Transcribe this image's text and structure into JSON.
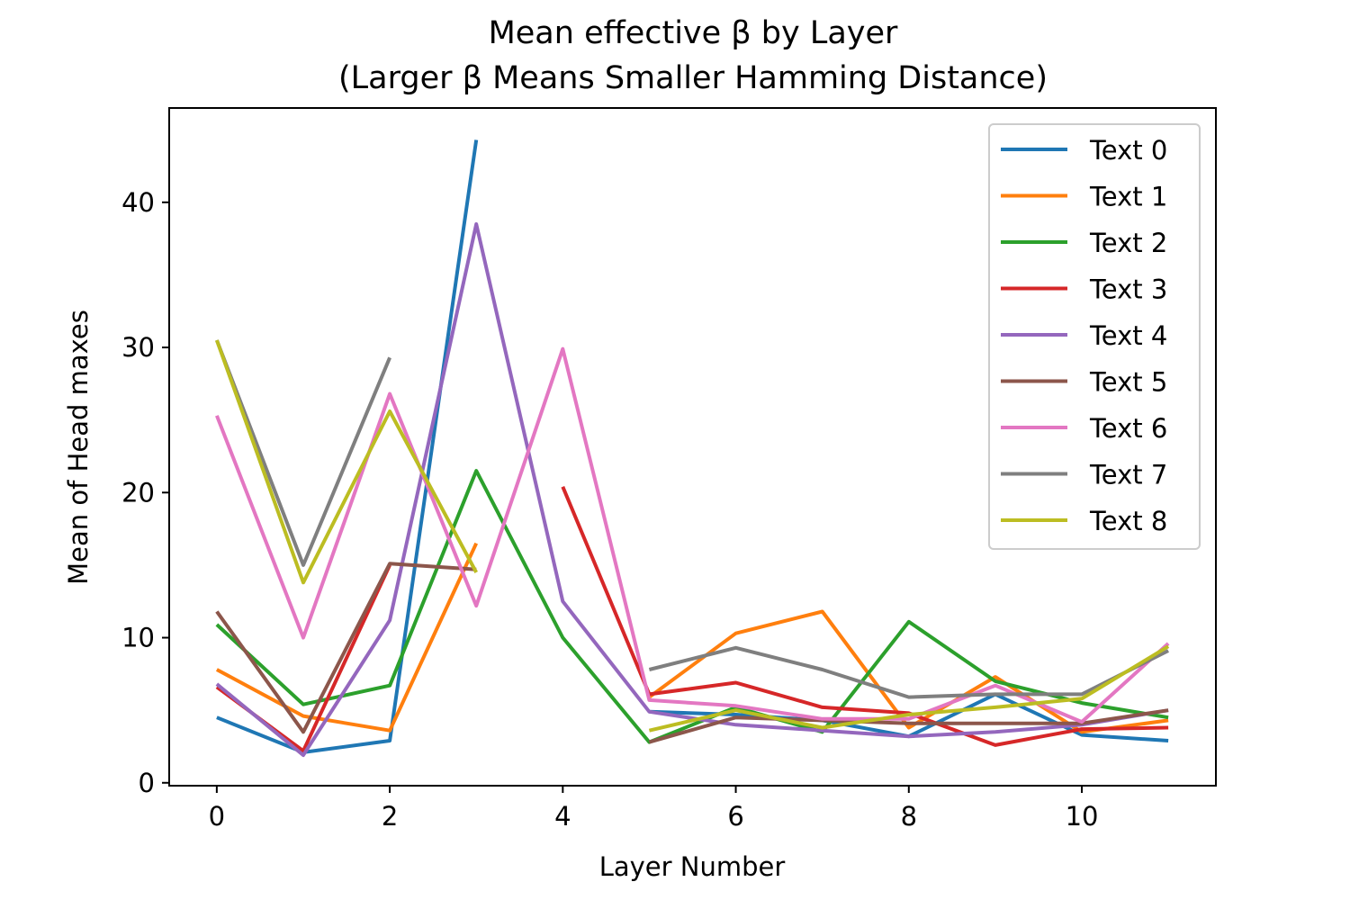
{
  "chart_data": {
    "type": "line",
    "title_lines": [
      "Mean effective β by Layer",
      "(Larger β Means Smaller Hamming Distance)"
    ],
    "xlabel": "Layer Number",
    "ylabel": "Mean of Head maxes",
    "xlim": [
      -0.55,
      11.55
    ],
    "ylim": [
      -0.2,
      46.5
    ],
    "xticks": [
      0,
      2,
      4,
      6,
      8,
      10
    ],
    "yticks": [
      0,
      10,
      20,
      30,
      40
    ],
    "grid": false,
    "legend_position": "top-right",
    "x": [
      0,
      1,
      2,
      3,
      4,
      5,
      6,
      7,
      8,
      9,
      10,
      11
    ],
    "series": [
      {
        "name": "Text 0",
        "color": "#1f77b4",
        "values": [
          4.5,
          2.1,
          2.9,
          44.3,
          null,
          4.9,
          4.7,
          4.3,
          3.2,
          6.1,
          3.3,
          2.9
        ]
      },
      {
        "name": "Text 1",
        "color": "#ff7f0e",
        "values": [
          7.8,
          4.6,
          3.6,
          16.5,
          null,
          5.9,
          10.3,
          11.8,
          3.8,
          7.3,
          3.5,
          4.3
        ]
      },
      {
        "name": "Text 2",
        "color": "#2ca02c",
        "values": [
          10.9,
          5.4,
          6.7,
          21.5,
          10.0,
          2.8,
          5.2,
          3.5,
          11.1,
          7.0,
          5.5,
          4.5
        ]
      },
      {
        "name": "Text 3",
        "color": "#d62728",
        "values": [
          6.6,
          2.2,
          15.0,
          null,
          20.4,
          6.1,
          6.9,
          5.2,
          4.8,
          2.6,
          3.7,
          3.8
        ]
      },
      {
        "name": "Text 4",
        "color": "#9467bd",
        "values": [
          6.8,
          1.9,
          11.2,
          38.5,
          12.5,
          4.9,
          4.0,
          3.6,
          3.2,
          3.5,
          4.0,
          5.0
        ]
      },
      {
        "name": "Text 5",
        "color": "#8c564b",
        "values": [
          11.8,
          3.5,
          15.1,
          14.7,
          null,
          2.8,
          4.5,
          4.3,
          4.1,
          4.1,
          4.1,
          5.0
        ]
      },
      {
        "name": "Text 6",
        "color": "#e377c2",
        "values": [
          25.3,
          10.0,
          26.8,
          12.2,
          29.9,
          5.7,
          5.3,
          4.4,
          4.4,
          6.7,
          4.2,
          9.6
        ]
      },
      {
        "name": "Text 7",
        "color": "#7f7f7f",
        "values": [
          30.5,
          15.0,
          29.3,
          null,
          null,
          7.8,
          9.3,
          7.8,
          5.9,
          6.1,
          6.1,
          9.1
        ]
      },
      {
        "name": "Text 8",
        "color": "#bcbd22",
        "values": [
          30.5,
          13.8,
          25.6,
          14.5,
          null,
          3.6,
          5.0,
          3.8,
          4.7,
          5.2,
          5.8,
          9.4
        ]
      }
    ]
  }
}
